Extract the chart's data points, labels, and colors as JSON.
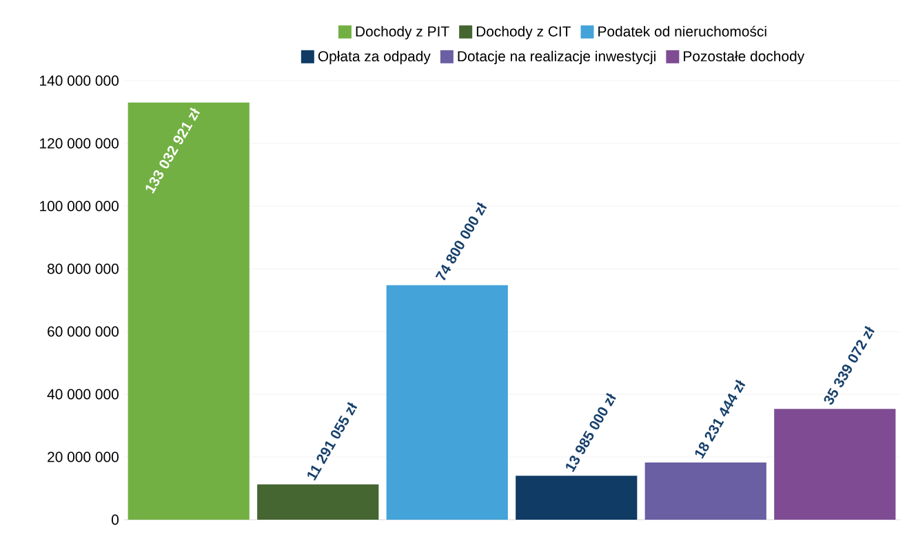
{
  "chart_data": {
    "type": "bar",
    "categories": [
      null,
      null,
      null,
      null,
      null,
      null
    ],
    "series": [
      {
        "name": "Dochody z PIT",
        "color": "#72b043",
        "values": [
          133032921,
          null,
          null,
          null,
          null,
          null
        ],
        "value_labels": [
          "133 032 921 zł",
          null,
          null,
          null,
          null,
          null
        ]
      },
      {
        "name": "Dochody z CIT",
        "color": "#456531",
        "values": [
          null,
          11291055,
          null,
          null,
          null,
          null
        ],
        "value_labels": [
          null,
          "11 291 055 zł",
          null,
          null,
          null,
          null
        ]
      },
      {
        "name": "Podatek od nieruchomości",
        "color": "#44a3d9",
        "values": [
          null,
          null,
          74800000,
          null,
          null,
          null
        ],
        "value_labels": [
          null,
          null,
          "74 800 000 zł",
          null,
          null,
          null
        ]
      },
      {
        "name": "Opłata za odpady",
        "color": "#0f3b64",
        "values": [
          null,
          null,
          null,
          13985000,
          null,
          null
        ],
        "value_labels": [
          null,
          null,
          null,
          "13 985 000 zł",
          null,
          null
        ]
      },
      {
        "name": "Dotacje na realizacje inwestycji",
        "color": "#6a5fa3",
        "values": [
          null,
          null,
          null,
          null,
          18231444,
          null
        ],
        "value_labels": [
          null,
          null,
          null,
          null,
          "18 231 444 zł",
          null
        ]
      },
      {
        "name": "Pozostałe dochody",
        "color": "#7f4c93",
        "values": [
          null,
          null,
          null,
          null,
          null,
          35339072
        ],
        "value_labels": [
          null,
          null,
          null,
          null,
          null,
          "35 339 072 zł"
        ]
      }
    ],
    "ylim": [
      0,
      140000000
    ],
    "yticks": [
      {
        "value": 0,
        "label": "0"
      },
      {
        "value": 20000000,
        "label": "20 000 000"
      },
      {
        "value": 40000000,
        "label": "40 000 000"
      },
      {
        "value": 60000000,
        "label": "60 000 000"
      },
      {
        "value": 80000000,
        "label": "80 000 000"
      },
      {
        "value": 100000000,
        "label": "100 000 000"
      },
      {
        "value": 120000000,
        "label": "120 000 000"
      },
      {
        "value": 140000000,
        "label": "140 000 000"
      }
    ],
    "grid": "y",
    "legend": "top"
  }
}
